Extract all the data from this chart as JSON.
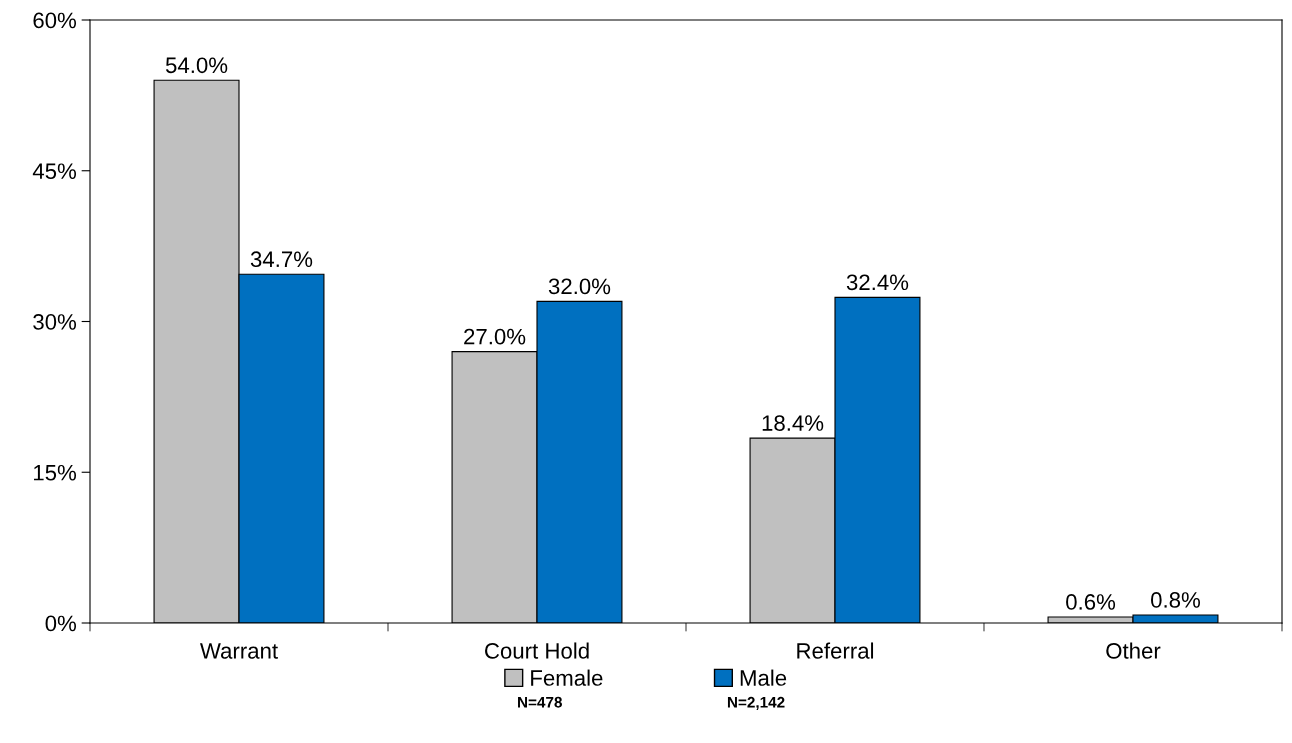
{
  "chart_data": {
    "type": "bar",
    "categories": [
      "Warrant",
      "Court Hold",
      "Referral",
      "Other"
    ],
    "series": [
      {
        "name": "Female",
        "color": "#c0c0c0",
        "values": [
          54.0,
          27.0,
          18.4,
          0.6
        ],
        "value_labels": [
          "54.0%",
          "27.0%",
          "18.4%",
          "0.6%"
        ]
      },
      {
        "name": "Male",
        "color": "#0070c0",
        "values": [
          34.7,
          32.0,
          32.4,
          0.8
        ],
        "value_labels": [
          "34.7%",
          "32.0%",
          "32.4%",
          "0.8%"
        ]
      }
    ],
    "ylim": [
      0,
      60
    ],
    "yticks": [
      {
        "value": 0,
        "label": "0%"
      },
      {
        "value": 15,
        "label": "15%"
      },
      {
        "value": 30,
        "label": "30%"
      },
      {
        "value": 45,
        "label": "45%"
      },
      {
        "value": 60,
        "label": "60%"
      }
    ],
    "grid": false,
    "legend": "bottom",
    "annotations": [
      "N=478",
      "N=2,142"
    ]
  }
}
